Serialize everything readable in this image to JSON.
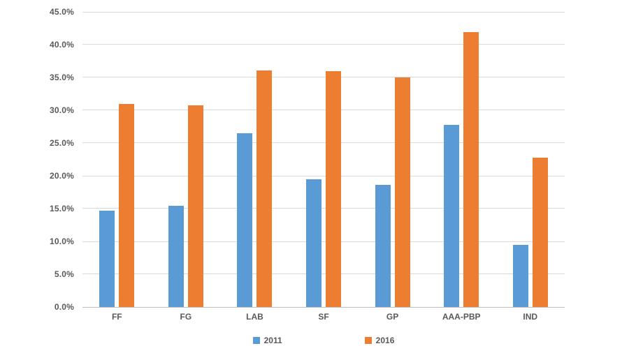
{
  "chart_data": {
    "type": "bar",
    "title": "",
    "xlabel": "",
    "ylabel": "",
    "categories": [
      "FF",
      "FG",
      "LAB",
      "SF",
      "GP",
      "AAA-PBP",
      "IND"
    ],
    "series": [
      {
        "name": "2011",
        "color": "#5b9bd5",
        "values": [
          14.7,
          15.4,
          26.5,
          19.5,
          18.6,
          27.8,
          9.5
        ]
      },
      {
        "name": "2016",
        "color": "#ed7d31",
        "values": [
          31.0,
          30.7,
          36.1,
          36.0,
          35.0,
          41.9,
          22.8
        ]
      }
    ],
    "ylim": [
      0,
      45
    ],
    "ytick_step": 5,
    "ytick_suffix": "%",
    "ytick_decimals": 1,
    "grid": true,
    "legend_position": "bottom-center",
    "colors": {
      "background": "#ffffff",
      "gridline": "#d9d9d9",
      "axis_line": "#bfbfbf",
      "tick_label": "#595959"
    }
  }
}
